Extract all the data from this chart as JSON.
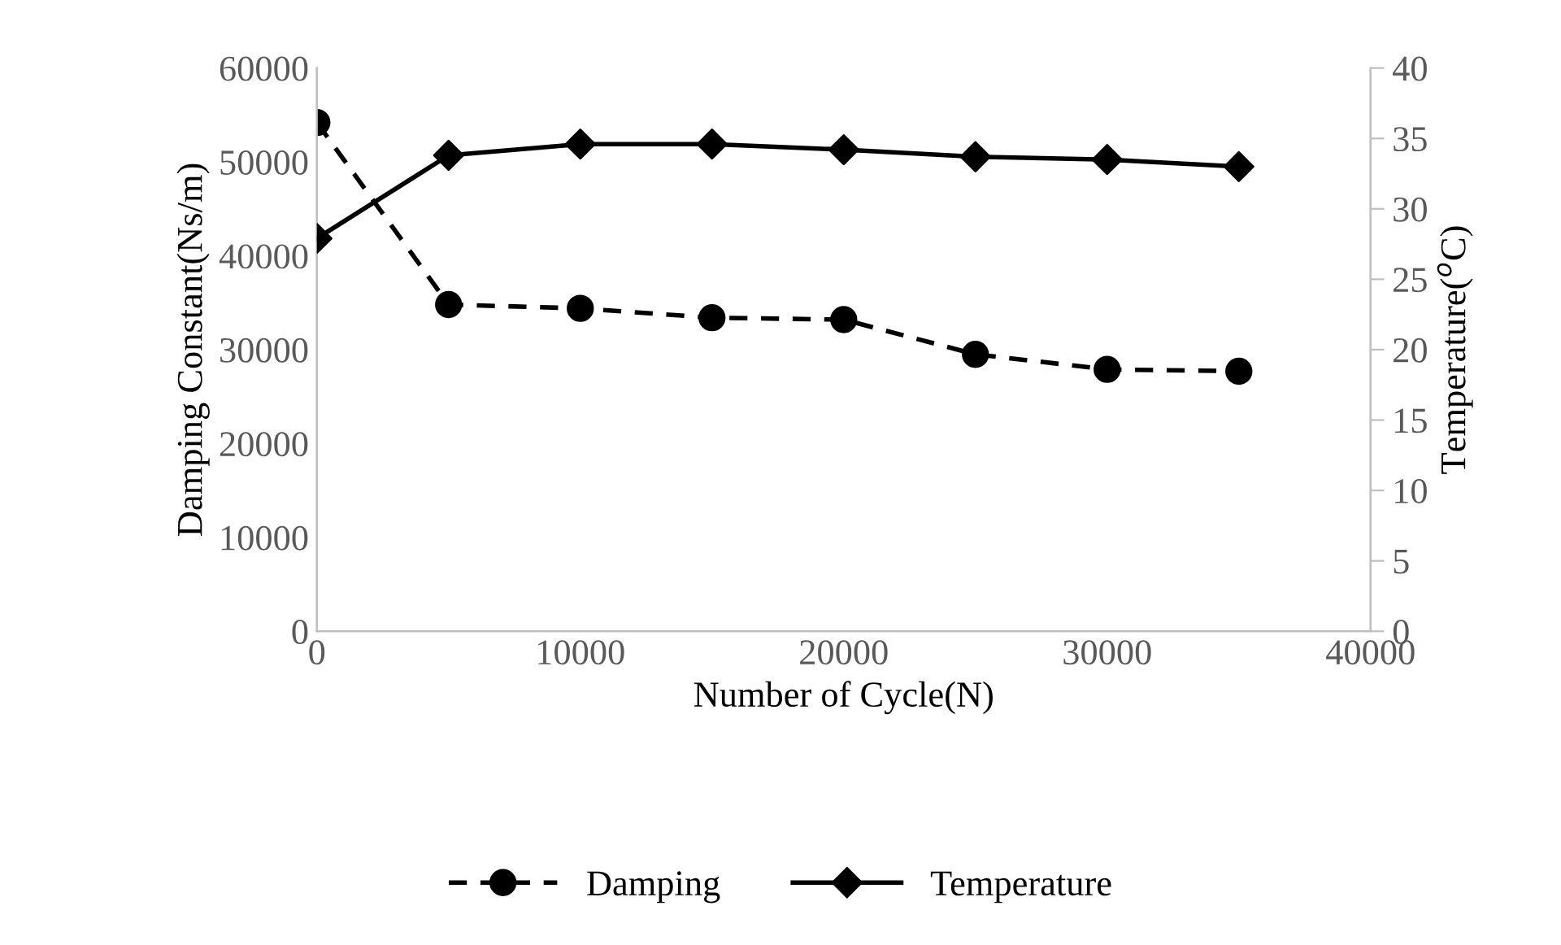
{
  "chart_data": {
    "type": "line",
    "xlabel": "Number of Cycle(N)",
    "ylabel": "Damping Constant(Ns/m)",
    "y2label": "Temperature($^{o}$C)",
    "x": [
      0,
      5000,
      10000,
      15000,
      20000,
      25000,
      30000,
      35000
    ],
    "series": [
      {
        "name": "Damping",
        "color": "#000000",
        "marker": "circle",
        "line_style": "dashed",
        "values": [
          54200,
          34800,
          34400,
          33400,
          33200,
          29500,
          27900,
          27700
        ]
      },
      {
        "name": "Temperature",
        "color": "#000000",
        "marker": "diamond",
        "line_style": "solid",
        "axis": "y2",
        "values": [
          27.9,
          33.8,
          34.6,
          34.6,
          34.2,
          33.7,
          33.5,
          33.0
        ]
      }
    ],
    "xlim": [
      0,
      40000
    ],
    "xticks": [
      0,
      10000,
      20000,
      30000,
      40000
    ],
    "ylim": [
      0,
      60000
    ],
    "yticks": [
      0,
      10000,
      20000,
      30000,
      40000,
      50000,
      60000
    ],
    "y2lim": [
      0,
      40
    ],
    "y2ticks": [
      0,
      5,
      10,
      15,
      20,
      25,
      30,
      35,
      40
    ],
    "grid": false,
    "legend": "bottom"
  }
}
